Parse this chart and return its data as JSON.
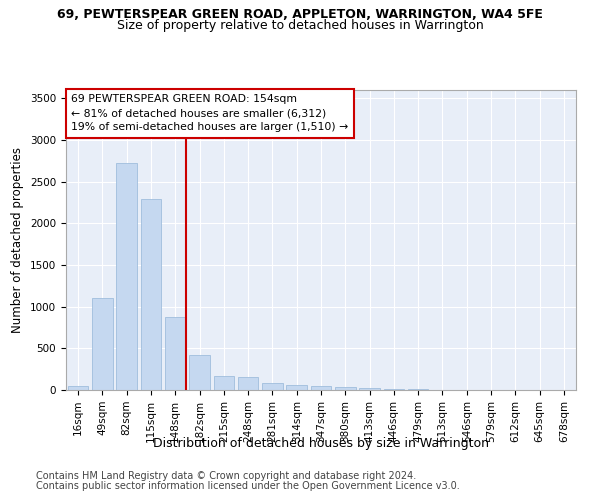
{
  "title1": "69, PEWTERSPEAR GREEN ROAD, APPLETON, WARRINGTON, WA4 5FE",
  "title2": "Size of property relative to detached houses in Warrington",
  "xlabel": "Distribution of detached houses by size in Warrington",
  "ylabel": "Number of detached properties",
  "footnote1": "Contains HM Land Registry data © Crown copyright and database right 2024.",
  "footnote2": "Contains public sector information licensed under the Open Government Licence v3.0.",
  "bin_labels": [
    "16sqm",
    "49sqm",
    "82sqm",
    "115sqm",
    "148sqm",
    "182sqm",
    "215sqm",
    "248sqm",
    "281sqm",
    "314sqm",
    "347sqm",
    "380sqm",
    "413sqm",
    "446sqm",
    "479sqm",
    "513sqm",
    "546sqm",
    "579sqm",
    "612sqm",
    "645sqm",
    "678sqm"
  ],
  "bar_values": [
    50,
    1100,
    2730,
    2290,
    880,
    420,
    165,
    155,
    90,
    60,
    50,
    35,
    28,
    15,
    12,
    5,
    3,
    2,
    1,
    0,
    0
  ],
  "bar_color": "#c5d8f0",
  "bar_edge_color": "#a0bedd",
  "vline_bin_index": 4,
  "vline_color": "#cc0000",
  "annotation_line1": "69 PEWTERSPEAR GREEN ROAD: 154sqm",
  "annotation_line2": "← 81% of detached houses are smaller (6,312)",
  "annotation_line3": "19% of semi-detached houses are larger (1,510) →",
  "annotation_box_color": "white",
  "annotation_box_edge": "#cc0000",
  "ylim": [
    0,
    3600
  ],
  "yticks": [
    0,
    500,
    1000,
    1500,
    2000,
    2500,
    3000,
    3500
  ],
  "bg_color": "#e8eef8",
  "grid_color": "white",
  "title1_fontsize": 9,
  "title2_fontsize": 9,
  "xlabel_fontsize": 9,
  "ylabel_fontsize": 8.5,
  "tick_fontsize": 7.5,
  "annotation_fontsize": 7.8,
  "footnote_fontsize": 7
}
